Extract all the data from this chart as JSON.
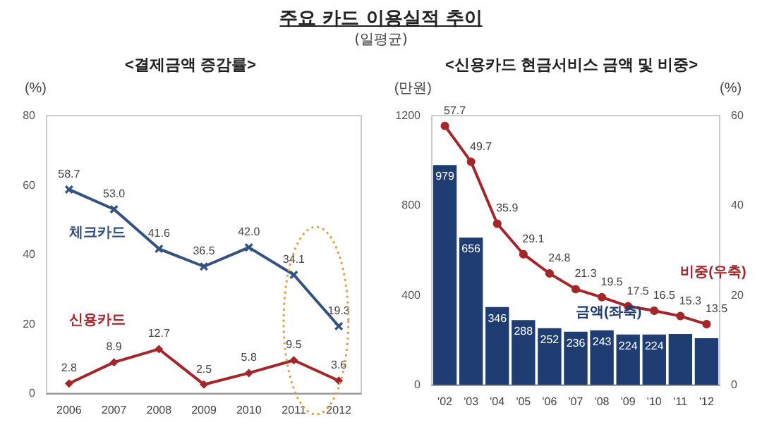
{
  "chart_data": [
    {
      "type": "line",
      "title": "주요 카드 이용실적 추이",
      "subtitle": "(일평균)",
      "annotations": [
        "<결제금액 증감률>"
      ],
      "ylabel": "(%)",
      "categories": [
        "2006",
        "2007",
        "2008",
        "2009",
        "2010",
        "2011",
        "2012"
      ],
      "series": [
        {
          "name": "체크카드",
          "color": "#34527f",
          "marker": "cross",
          "values": [
            58.7,
            53.0,
            41.6,
            36.5,
            42.0,
            34.1,
            19.3
          ],
          "value_labels": [
            "58.7",
            "53.0",
            "41.6",
            "36.5",
            "42.0",
            "34.1",
            "19.3"
          ]
        },
        {
          "name": "신용카드",
          "color": "#a3262b",
          "marker": "diamond",
          "values": [
            2.8,
            8.9,
            12.7,
            2.5,
            5.8,
            9.5,
            3.6
          ],
          "value_labels": [
            "2.8",
            "8.9",
            "12.7",
            "2.5",
            "5.8",
            "9.5",
            "3.6"
          ]
        }
      ],
      "ylim": [
        0,
        80
      ],
      "yticks": [
        0,
        20,
        40,
        60,
        80
      ],
      "grid": false,
      "legend": false,
      "line_style": "solid"
    },
    {
      "type": "bar",
      "title": "<신용카드 현금서비스 금액 및 비중>",
      "ylabel": "(만원)",
      "y2label": "(%)",
      "categories": [
        "'02",
        "'03",
        "'04",
        "'05",
        "'06",
        "'07",
        "'08",
        "'09",
        "'10",
        "'11",
        "'12"
      ],
      "series": [
        {
          "name": "금액(좌축)",
          "color": "#1f3d72",
          "values": [
            979,
            656,
            346,
            288,
            252,
            236,
            243,
            224,
            224,
            226,
            207
          ],
          "value_labels": [
            "979",
            "656",
            "346",
            "288",
            "252",
            "236",
            "243",
            "224",
            "224",
            null,
            null
          ]
        },
        {
          "name": "비중(우축)",
          "type": "line",
          "axis": "y2",
          "color": "#a3262b",
          "marker": "circle",
          "values": [
            57.7,
            49.7,
            35.9,
            29.1,
            24.8,
            21.3,
            19.5,
            17.5,
            16.5,
            15.3,
            13.5
          ],
          "value_labels": [
            "57.7",
            "49.7",
            "35.9",
            "29.1",
            "24.8",
            "21.3",
            "19.5",
            "17.5",
            "16.5",
            "15.3",
            "13.5"
          ]
        }
      ],
      "ylim": [
        0,
        1200
      ],
      "yticks": [
        0,
        400,
        800,
        1200
      ],
      "y2lim": [
        0,
        60
      ],
      "y2ticks": [
        0,
        20,
        40,
        60
      ],
      "grid": false,
      "legend": false,
      "line_style": "solid"
    }
  ]
}
